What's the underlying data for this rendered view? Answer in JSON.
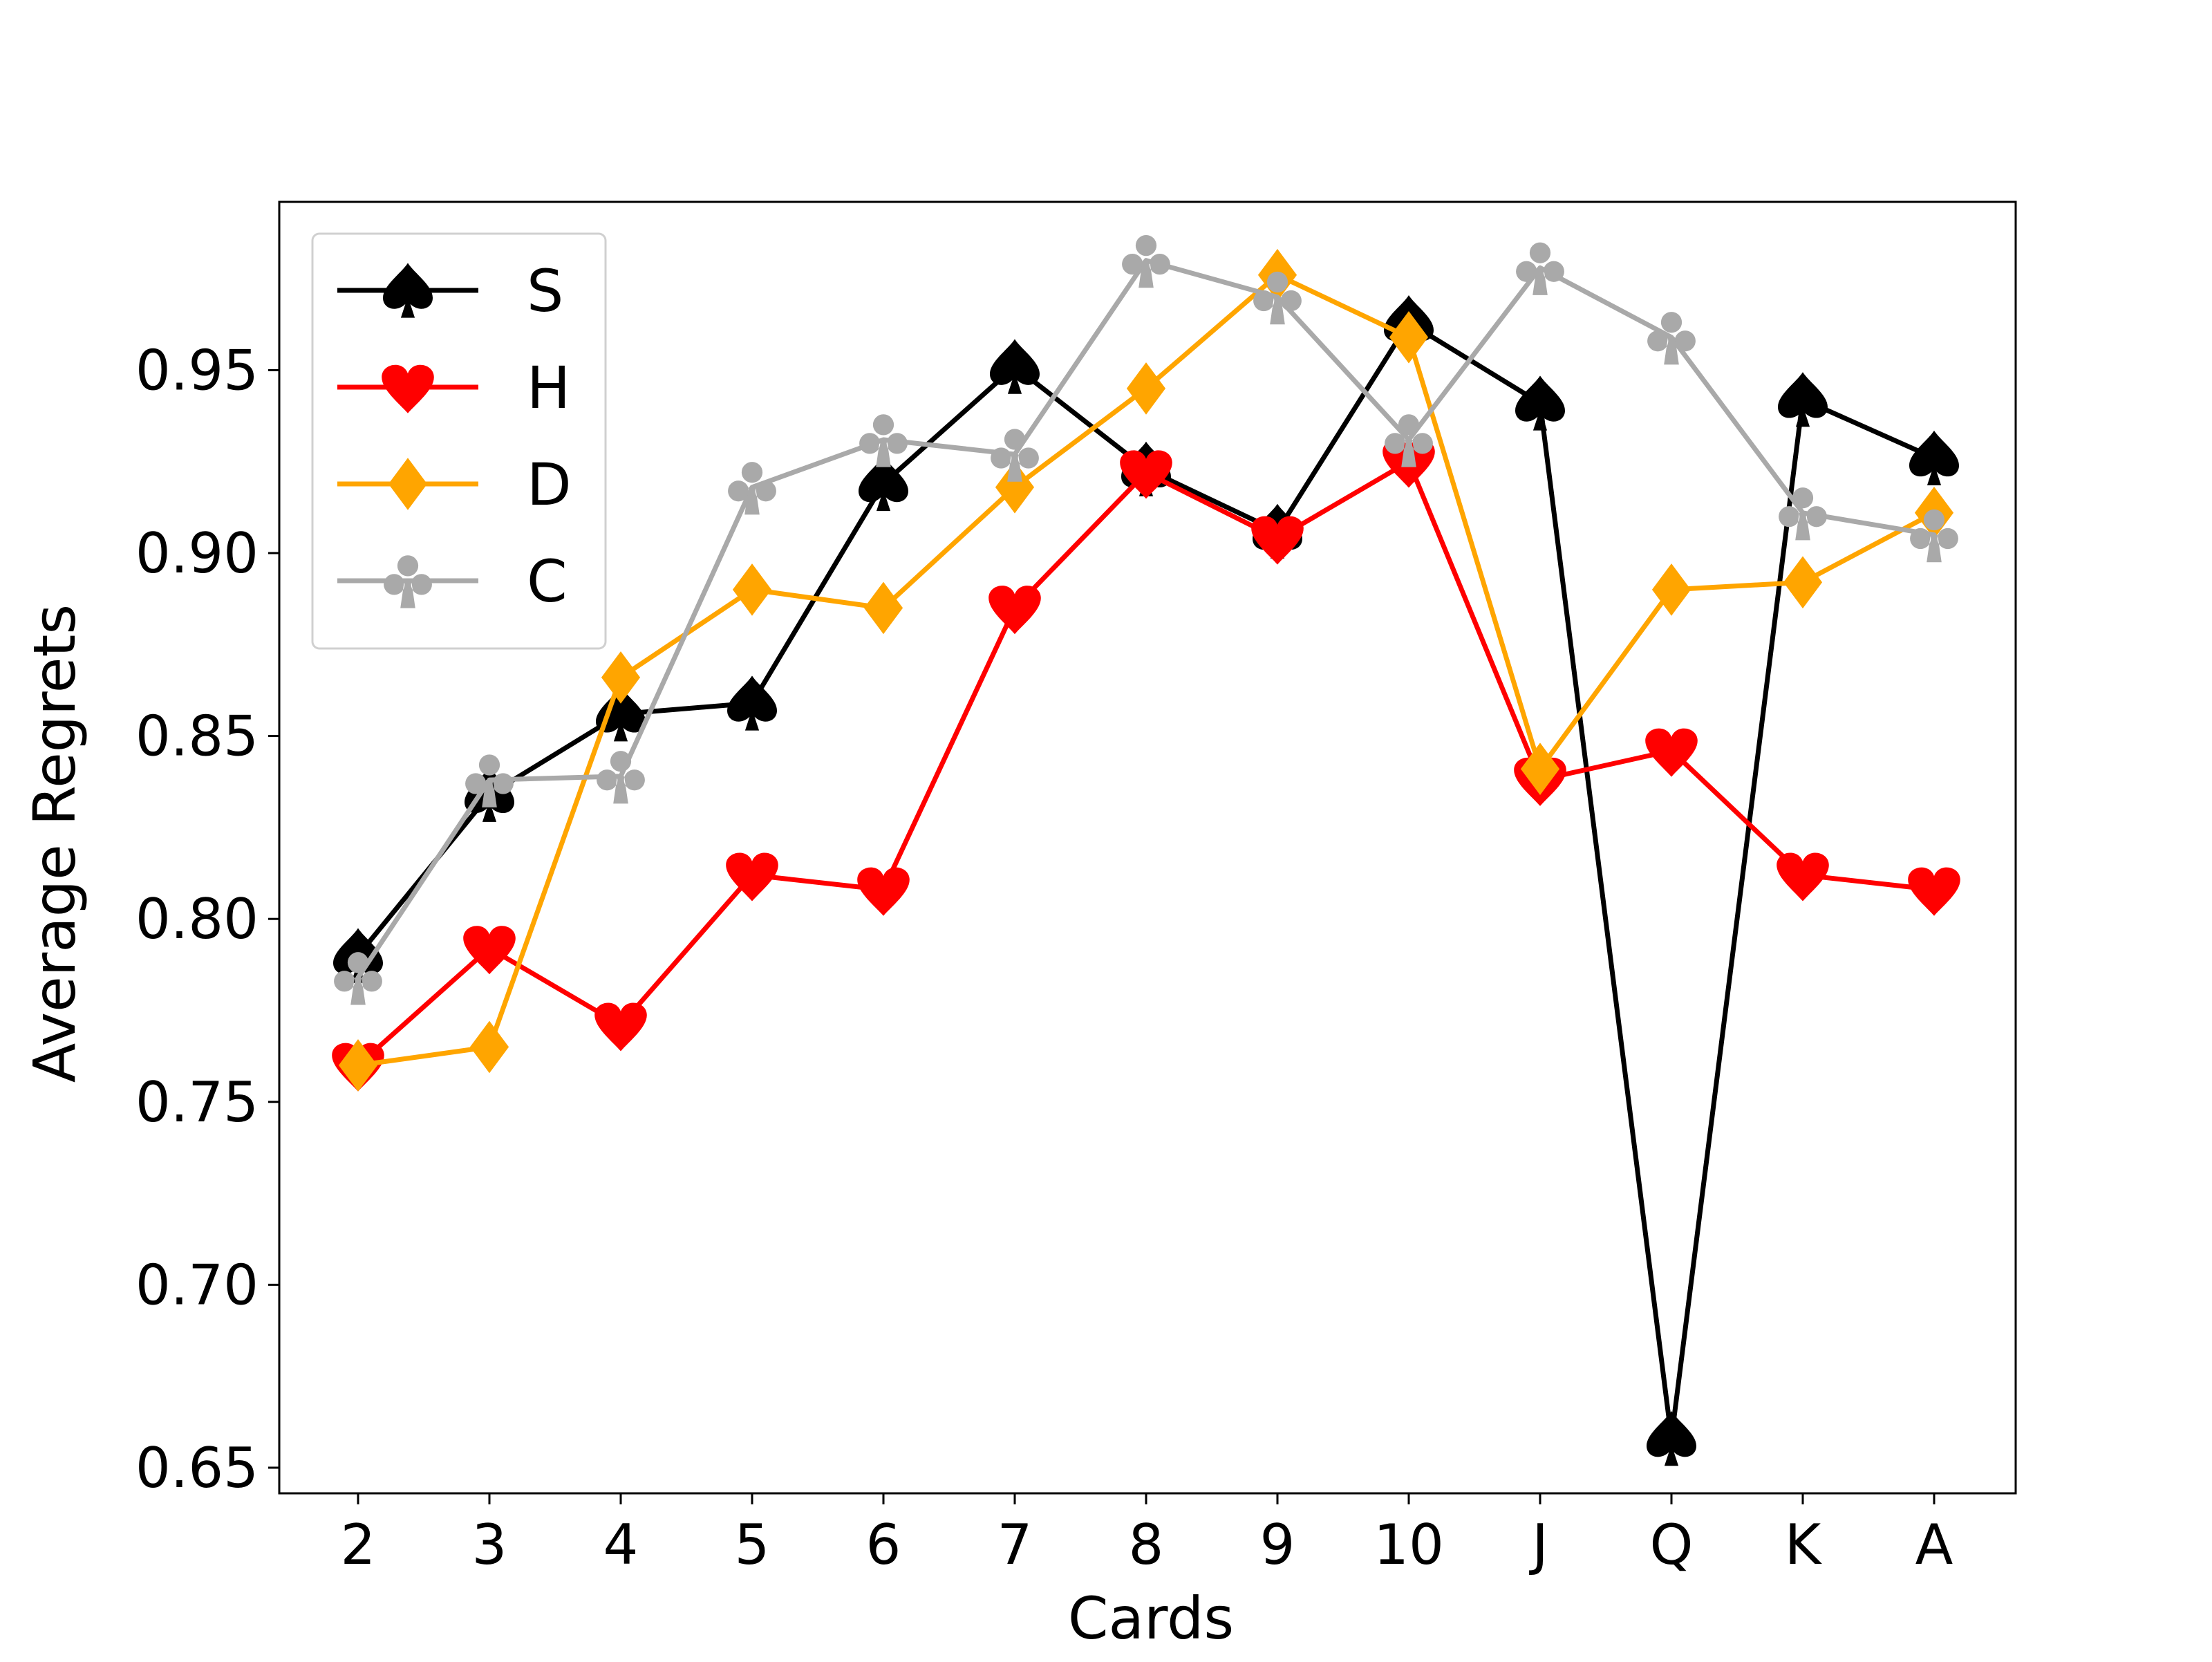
{
  "chart_data": {
    "type": "line",
    "title": "",
    "xlabel": "Cards",
    "ylabel": "Average Regrets",
    "categories": [
      "2",
      "3",
      "4",
      "5",
      "6",
      "7",
      "8",
      "9",
      "10",
      "J",
      "Q",
      "K",
      "A"
    ],
    "ylim": [
      0.643,
      0.996
    ],
    "yticks": [
      0.65,
      0.7,
      0.75,
      0.8,
      0.85,
      0.9,
      0.95
    ],
    "ytick_labels": [
      "0.65",
      "0.70",
      "0.75",
      "0.80",
      "0.85",
      "0.90",
      "0.95"
    ],
    "grid": false,
    "legend_position": "top-left",
    "series": [
      {
        "name": "S",
        "color": "#000000",
        "marker": "spade-icon",
        "values": [
          0.79,
          0.834,
          0.856,
          0.859,
          0.919,
          0.951,
          0.923,
          0.906,
          0.963,
          0.941,
          0.658,
          0.942,
          0.926
        ]
      },
      {
        "name": "H",
        "color": "#ff0000",
        "marker": "heart-icon",
        "values": [
          0.76,
          0.792,
          0.771,
          0.812,
          0.808,
          0.885,
          0.922,
          0.904,
          0.925,
          0.838,
          0.846,
          0.812,
          0.808
        ]
      },
      {
        "name": "D",
        "color": "#ffa500",
        "marker": "diamond-icon",
        "values": [
          0.76,
          0.765,
          0.866,
          0.89,
          0.885,
          0.918,
          0.945,
          0.976,
          0.959,
          0.841,
          0.89,
          0.892,
          0.911
        ]
      },
      {
        "name": "C",
        "color": "#a9a9a9",
        "marker": "club-icon",
        "values": [
          0.784,
          0.838,
          0.839,
          0.918,
          0.931,
          0.927,
          0.98,
          0.97,
          0.931,
          0.978,
          0.959,
          0.911,
          0.905
        ]
      }
    ]
  }
}
